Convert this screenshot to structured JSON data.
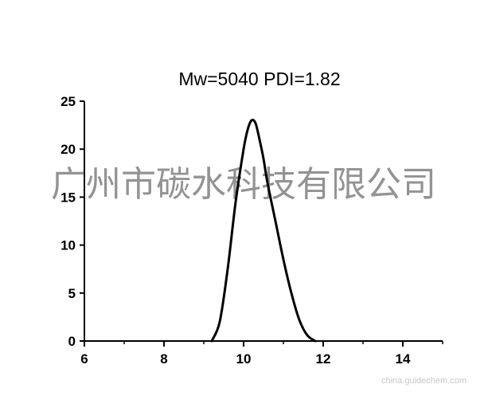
{
  "chart_data": {
    "type": "line",
    "title": "Mw=5040  PDI=1.82",
    "xlabel": "",
    "ylabel": "",
    "xlim": [
      6,
      15
    ],
    "ylim": [
      0,
      25
    ],
    "x_ticks": [
      "6",
      "8",
      "10",
      "12",
      "14"
    ],
    "y_ticks": [
      "0",
      "5",
      "10",
      "15",
      "20",
      "25"
    ],
    "grid": false,
    "legend": "none",
    "line_color": "#000000",
    "series": [
      {
        "x": [
          9.2,
          9.4,
          9.6,
          9.8,
          10.0,
          10.1,
          10.2,
          10.3,
          10.4,
          10.5,
          10.6,
          10.8,
          11.0,
          11.2,
          11.4,
          11.6,
          11.8
        ],
        "y": [
          0,
          2.0,
          7.5,
          14.5,
          20.0,
          22.0,
          23.0,
          22.7,
          21.0,
          19.0,
          16.5,
          12.5,
          8.5,
          5.0,
          2.2,
          0.6,
          0
        ]
      }
    ]
  },
  "watermark": "广州市碳水科技有限公司",
  "source": "china.guidechem.com"
}
